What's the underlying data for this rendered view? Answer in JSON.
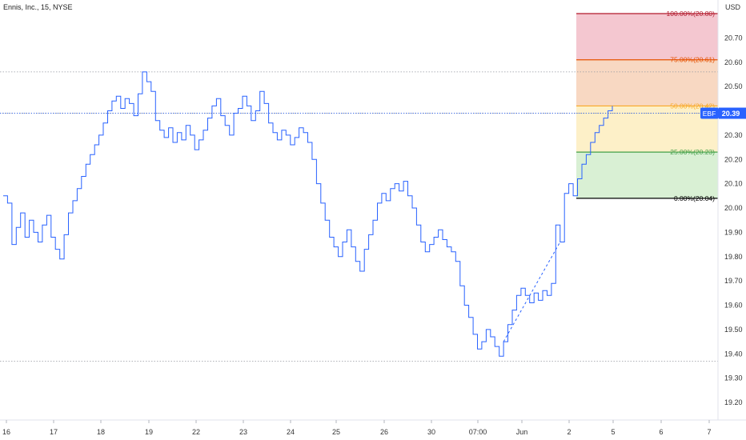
{
  "header": {
    "title": "Ennis, Inc., 15, NYSE",
    "currency": "USD"
  },
  "price_tag": {
    "symbol": "EBF",
    "value": "20.39",
    "color": "#2962ff"
  },
  "colors": {
    "price_line": "#2962ff",
    "grid_dotted": "#9598a1",
    "fib_100": "#b2182b",
    "fib_75": "#e65100",
    "fib_50": "#f9a825",
    "fib_25": "#43a047",
    "fib_0": "#000000",
    "zone_100_75": "#f4c7d0",
    "zone_75_50": "#f8d8c2",
    "zone_50_25": "#fdf0c8",
    "zone_25_0": "#d9f0d4"
  },
  "fibonacci": {
    "levels": [
      {
        "label": "100.00%(20.80)",
        "price": 20.8,
        "color": "#b2182b"
      },
      {
        "label": "75.00%(20.61)",
        "price": 20.61,
        "color": "#e65100"
      },
      {
        "label": "50.00%(20.42)",
        "price": 20.42,
        "color": "#f9a825"
      },
      {
        "label": "25.00%(20.23)",
        "price": 20.23,
        "color": "#43a047"
      },
      {
        "label": "0.00%(20.04)",
        "price": 20.04,
        "color": "#000000"
      }
    ]
  },
  "chart_data": {
    "type": "line",
    "title": "Ennis, Inc., 15, NYSE",
    "ylabel": "USD",
    "ylim": [
      19.14,
      20.83
    ],
    "y_ticks": [
      "20.70",
      "20.60",
      "20.50",
      "20.40",
      "20.30",
      "20.20",
      "20.10",
      "20.00",
      "19.90",
      "19.80",
      "19.70",
      "19.60",
      "19.50",
      "19.40",
      "19.30",
      "19.20"
    ],
    "x_ticks": [
      "16",
      "17",
      "18",
      "19",
      "22",
      "23",
      "24",
      "25",
      "26",
      "30",
      "07:00",
      "Jun",
      "2",
      "5",
      "6",
      "7"
    ],
    "x_tick_index": [
      0,
      1,
      2,
      3,
      4,
      5,
      6,
      7,
      8,
      9,
      10,
      11,
      12,
      13,
      14,
      15
    ],
    "horizontal_reference_lines": [
      20.56,
      20.39,
      19.37
    ],
    "series": [
      {
        "values": [
          20.05,
          20.02,
          19.85,
          19.92,
          19.98,
          19.88,
          19.95,
          19.9,
          19.86,
          19.93,
          19.97,
          19.88,
          19.83,
          19.79,
          19.89,
          19.98,
          20.03,
          20.08,
          20.13,
          20.18,
          20.22,
          20.26,
          20.3,
          20.35,
          20.4,
          20.44,
          20.46,
          20.41,
          20.45,
          20.43,
          20.38,
          20.47,
          20.56,
          20.52,
          20.48,
          20.36,
          20.32,
          20.29,
          20.33,
          20.27,
          20.31,
          20.28,
          20.34,
          20.3,
          20.24,
          20.28,
          20.32,
          20.37,
          20.42,
          20.45,
          20.38,
          20.34,
          20.3,
          20.39,
          20.41,
          20.46,
          20.42,
          20.36,
          20.4,
          20.48,
          20.43,
          20.35,
          20.31,
          20.28,
          20.32,
          20.3,
          20.26,
          20.29,
          20.33,
          20.31,
          20.27,
          20.2,
          20.1,
          20.02,
          19.95,
          19.88,
          19.84,
          19.8,
          19.86,
          19.91,
          19.84,
          19.78,
          19.74,
          19.83,
          19.89,
          19.95,
          20.02,
          20.06,
          20.03,
          20.08,
          20.1,
          20.07,
          20.11,
          20.05,
          20.0,
          19.93,
          19.86,
          19.82,
          19.85,
          19.88,
          19.91,
          19.87,
          19.84,
          19.82,
          19.78,
          19.68,
          19.6,
          19.55,
          19.48,
          19.42,
          19.45,
          19.5,
          19.47,
          19.43,
          19.39,
          19.45,
          19.52,
          19.58,
          19.64,
          19.67,
          19.64,
          19.61,
          19.65,
          19.62,
          19.66,
          19.64,
          19.69,
          19.93,
          19.86,
          20.06,
          20.1,
          20.05,
          20.12,
          20.18,
          20.22,
          20.27,
          20.31,
          20.34,
          20.37,
          20.4,
          20.42
        ]
      }
    ]
  }
}
